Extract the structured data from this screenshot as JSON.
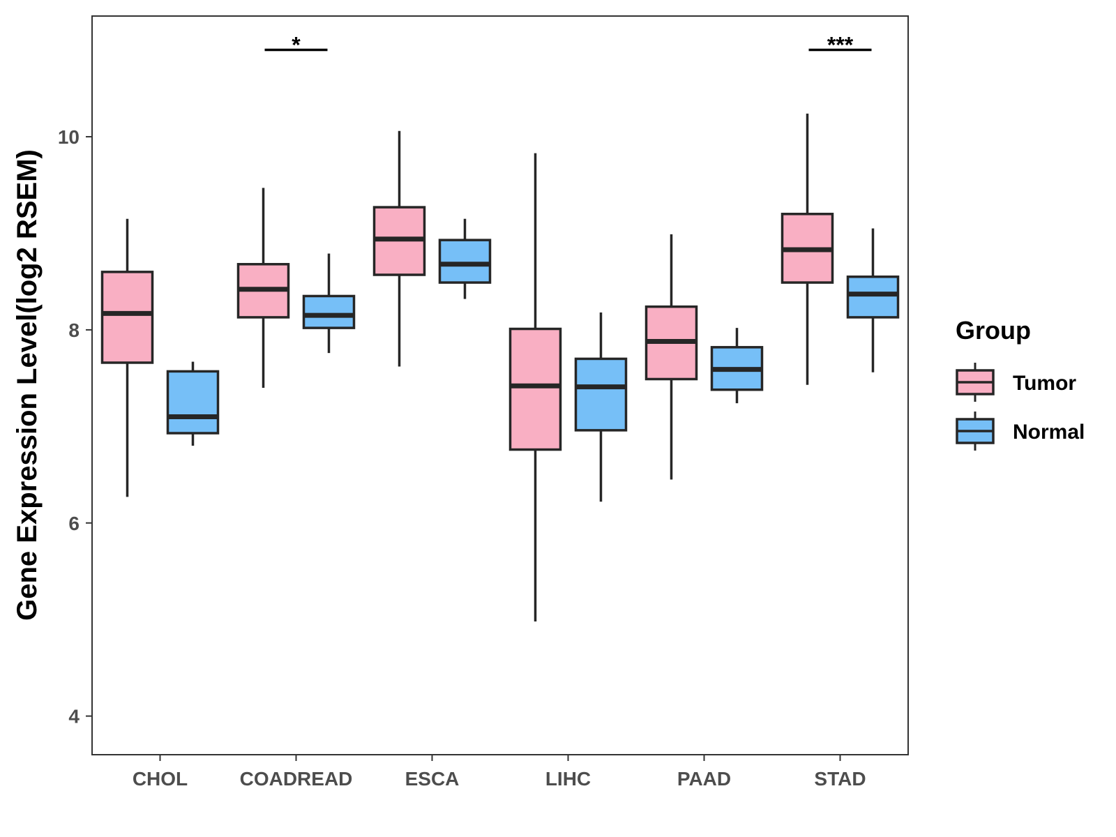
{
  "chart_data": {
    "type": "boxplot",
    "ylabel": "Gene Expression Level(log2 RSEM)",
    "xlabel": "",
    "ylim": [
      3.6,
      11.25
    ],
    "yticks": [
      4,
      6,
      8,
      10
    ],
    "categories": [
      "CHOL",
      "COADREAD",
      "ESCA",
      "LIHC",
      "PAAD",
      "STAD"
    ],
    "legend": {
      "title": "Group",
      "position": "right",
      "entries": [
        "Tumor",
        "Normal"
      ]
    },
    "colors": {
      "Tumor": "#f9afc3",
      "Normal": "#76bff7",
      "outline": "#262626"
    },
    "series": [
      {
        "name": "Tumor",
        "boxes": [
          {
            "category": "CHOL",
            "min": 6.27,
            "q1": 7.66,
            "median": 8.17,
            "q3": 8.6,
            "max": 9.15
          },
          {
            "category": "COADREAD",
            "min": 7.4,
            "q1": 8.13,
            "median": 8.42,
            "q3": 8.68,
            "max": 9.47
          },
          {
            "category": "ESCA",
            "min": 7.62,
            "q1": 8.57,
            "median": 8.94,
            "q3": 9.27,
            "max": 10.06
          },
          {
            "category": "LIHC",
            "min": 4.98,
            "q1": 6.76,
            "median": 7.42,
            "q3": 8.01,
            "max": 9.83
          },
          {
            "category": "PAAD",
            "min": 6.45,
            "q1": 7.49,
            "median": 7.88,
            "q3": 8.24,
            "max": 8.99
          },
          {
            "category": "STAD",
            "min": 7.43,
            "q1": 8.49,
            "median": 8.83,
            "q3": 9.2,
            "max": 10.24
          }
        ]
      },
      {
        "name": "Normal",
        "boxes": [
          {
            "category": "CHOL",
            "min": 6.8,
            "q1": 6.93,
            "median": 7.1,
            "q3": 7.57,
            "max": 7.67
          },
          {
            "category": "COADREAD",
            "min": 7.76,
            "q1": 8.02,
            "median": 8.15,
            "q3": 8.35,
            "max": 8.79
          },
          {
            "category": "ESCA",
            "min": 8.32,
            "q1": 8.49,
            "median": 8.68,
            "q3": 8.93,
            "max": 9.15
          },
          {
            "category": "LIHC",
            "min": 6.22,
            "q1": 6.96,
            "median": 7.41,
            "q3": 7.7,
            "max": 8.18
          },
          {
            "category": "PAAD",
            "min": 7.24,
            "q1": 7.38,
            "median": 7.59,
            "q3": 7.82,
            "max": 8.02
          },
          {
            "category": "STAD",
            "min": 7.56,
            "q1": 8.13,
            "median": 8.37,
            "q3": 8.55,
            "max": 9.05
          }
        ]
      }
    ],
    "annotations": [
      {
        "category": "COADREAD",
        "label": "*",
        "y": 10.9
      },
      {
        "category": "STAD",
        "label": "***",
        "y": 10.9
      }
    ]
  }
}
